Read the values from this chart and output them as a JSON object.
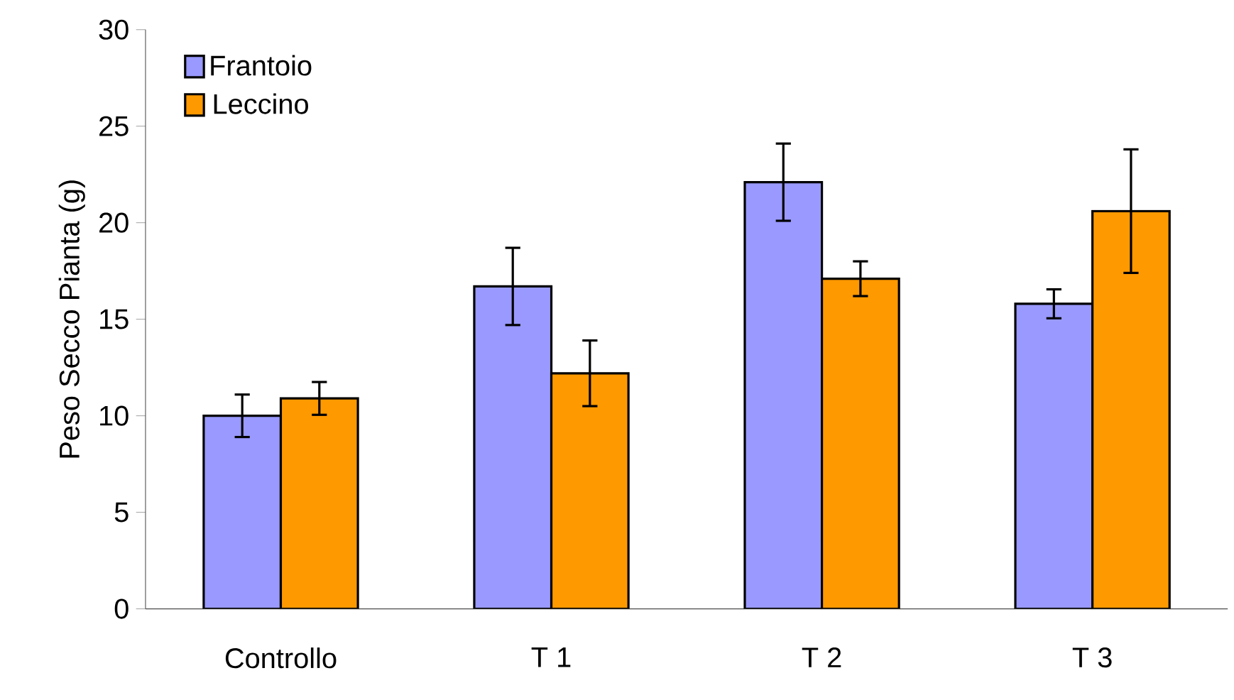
{
  "chart_data": {
    "type": "bar",
    "ylabel": "Peso Secco Pianta (g)",
    "categories": [
      "Controllo",
      "T 1",
      "T 2",
      "T 3"
    ],
    "series": [
      {
        "name": "Frantoio",
        "color": "#9999ff",
        "values": [
          10.0,
          16.7,
          22.1,
          15.8
        ],
        "errors": [
          1.1,
          2.0,
          2.0,
          0.75
        ]
      },
      {
        "name": "Leccino",
        "color": "#ff9900",
        "values": [
          10.9,
          12.2,
          17.1,
          20.6
        ],
        "errors": [
          0.85,
          1.7,
          0.9,
          3.2
        ]
      }
    ],
    "ylim": [
      0,
      30
    ],
    "yticks": [
      0,
      5,
      10,
      15,
      20,
      25,
      30
    ],
    "legend": "top left"
  }
}
